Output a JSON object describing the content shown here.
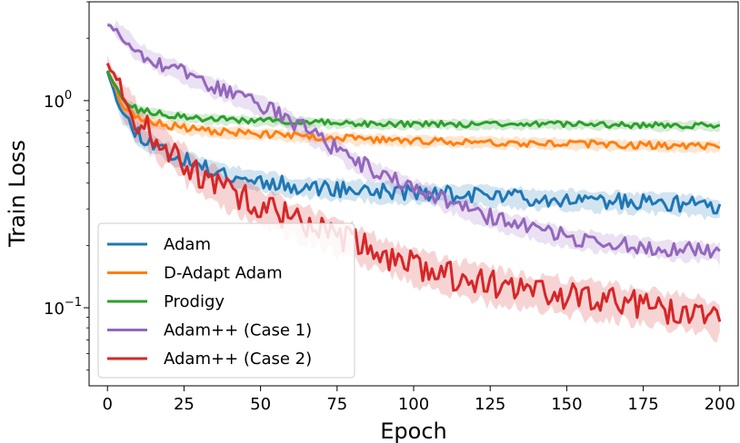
{
  "chart_data": {
    "type": "line",
    "title": "",
    "xlabel": "Epoch",
    "ylabel": "Train Loss",
    "xlim": [
      -6,
      206
    ],
    "ylim": [
      0.042,
      3.0
    ],
    "yscale": "log",
    "grid": false,
    "legend_position": "lower-left",
    "x_ticks": [
      0,
      25,
      50,
      75,
      100,
      125,
      150,
      175,
      200
    ],
    "x_tick_labels": [
      "0",
      "25",
      "50",
      "75",
      "100",
      "125",
      "150",
      "175",
      "200"
    ],
    "y_ticks": [
      {
        "value": 1.0,
        "base": "10",
        "exp": "0"
      },
      {
        "value": 0.1,
        "base": "10",
        "exp": "−1"
      }
    ],
    "series": [
      {
        "name": "Adam",
        "color": "#1f77b4",
        "x": [
          0,
          3,
          5,
          10,
          15,
          20,
          25,
          30,
          40,
          50,
          60,
          70,
          80,
          90,
          100,
          110,
          120,
          130,
          140,
          150,
          160,
          170,
          180,
          190,
          200
        ],
        "values": [
          1.4,
          1.05,
          0.85,
          0.7,
          0.62,
          0.56,
          0.52,
          0.48,
          0.44,
          0.41,
          0.39,
          0.38,
          0.37,
          0.365,
          0.36,
          0.355,
          0.35,
          0.345,
          0.34,
          0.335,
          0.33,
          0.325,
          0.32,
          0.315,
          0.3
        ],
        "noise": 0.09,
        "band": 0.12,
        "seed": 11
      },
      {
        "name": "D-Adapt Adam",
        "color": "#ff7f0e",
        "x": [
          0,
          5,
          10,
          20,
          30,
          50,
          75,
          100,
          125,
          150,
          175,
          200
        ],
        "values": [
          1.4,
          0.95,
          0.82,
          0.76,
          0.72,
          0.69,
          0.66,
          0.64,
          0.63,
          0.62,
          0.61,
          0.6
        ],
        "noise": 0.04,
        "band": 0.07,
        "seed": 23
      },
      {
        "name": "Prodigy",
        "color": "#2ca02c",
        "x": [
          0,
          5,
          10,
          20,
          30,
          50,
          75,
          100,
          125,
          150,
          175,
          200
        ],
        "values": [
          1.4,
          1.0,
          0.9,
          0.85,
          0.82,
          0.8,
          0.78,
          0.77,
          0.77,
          0.77,
          0.76,
          0.76
        ],
        "noise": 0.035,
        "band": 0.06,
        "seed": 37
      },
      {
        "name": "Adam++ (Case 1)",
        "color": "#9467bd",
        "x": [
          0,
          5,
          10,
          20,
          30,
          40,
          50,
          60,
          70,
          80,
          90,
          100,
          110,
          120,
          130,
          140,
          150,
          160,
          170,
          180,
          190,
          200
        ],
        "values": [
          2.35,
          2.05,
          1.75,
          1.45,
          1.25,
          1.1,
          0.95,
          0.8,
          0.65,
          0.52,
          0.44,
          0.38,
          0.33,
          0.29,
          0.26,
          0.24,
          0.22,
          0.21,
          0.2,
          0.195,
          0.19,
          0.185
        ],
        "noise": 0.09,
        "band": 0.12,
        "seed": 53
      },
      {
        "name": "Adam++ (Case 2)",
        "color": "#d62728",
        "x": [
          0,
          3,
          5,
          10,
          15,
          20,
          25,
          30,
          40,
          50,
          60,
          70,
          80,
          90,
          100,
          110,
          120,
          130,
          140,
          150,
          160,
          170,
          180,
          190,
          200
        ],
        "values": [
          1.55,
          1.2,
          1.0,
          0.8,
          0.68,
          0.58,
          0.5,
          0.44,
          0.36,
          0.31,
          0.27,
          0.24,
          0.21,
          0.18,
          0.16,
          0.145,
          0.135,
          0.125,
          0.12,
          0.115,
          0.11,
          0.105,
          0.1,
          0.095,
          0.09
        ],
        "noise": 0.16,
        "band": 0.22,
        "seed": 71
      }
    ]
  }
}
